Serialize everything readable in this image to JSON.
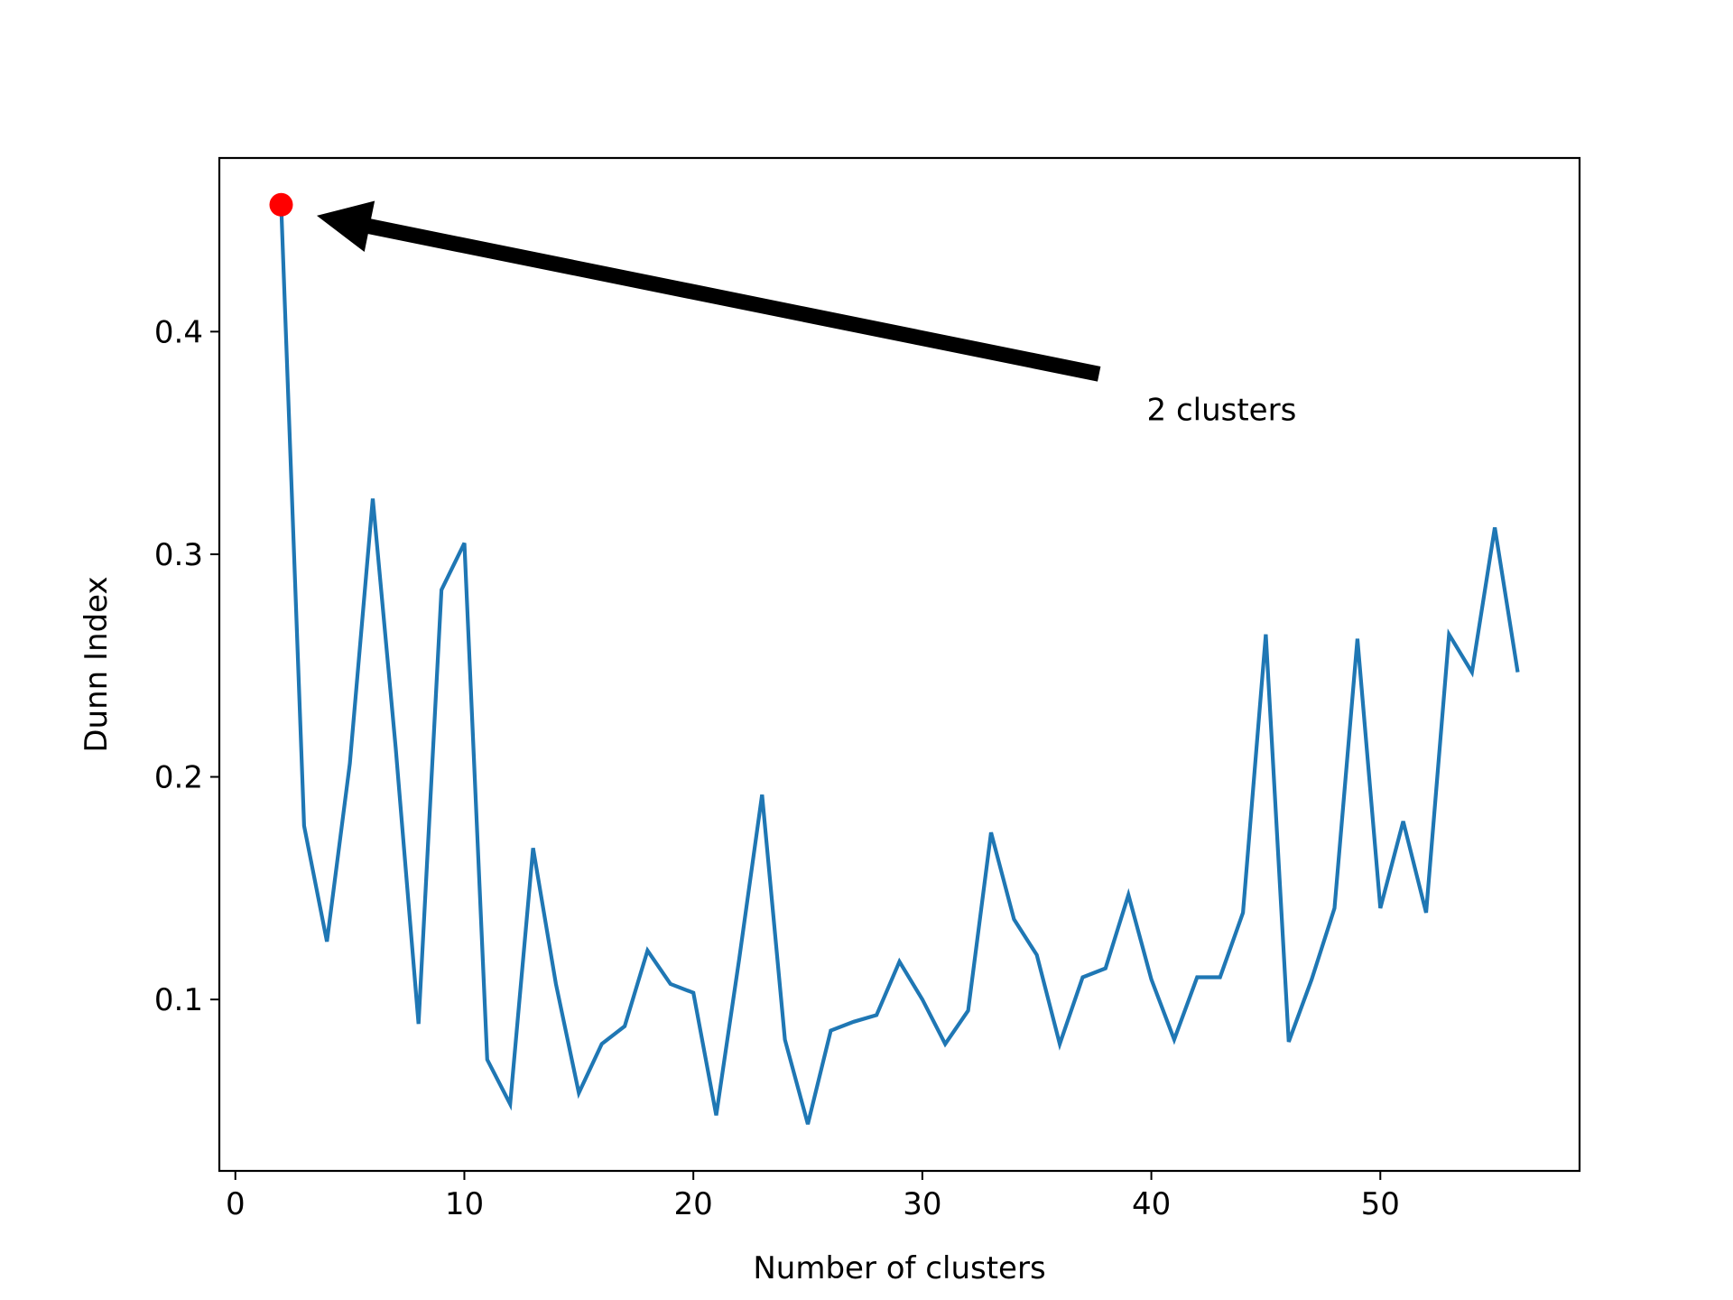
{
  "chart_data": {
    "type": "line",
    "title": "",
    "xlabel": "Number of clusters",
    "ylabel": "Dunn Index",
    "xlim": [
      -0.7,
      58.7
    ],
    "ylim": [
      0.023,
      0.478
    ],
    "xticks": [
      0,
      10,
      20,
      30,
      40,
      50
    ],
    "yticks": [
      0.1,
      0.2,
      0.3,
      0.4
    ],
    "xtick_labels": [
      "0",
      "10",
      "20",
      "30",
      "40",
      "50"
    ],
    "ytick_labels": [
      "0.1",
      "0.2",
      "0.3",
      "0.4"
    ],
    "grid": false,
    "series": [
      {
        "color": "#1f77b4",
        "x": [
          2,
          3,
          4,
          5,
          6,
          7,
          8,
          9,
          10,
          11,
          12,
          13,
          14,
          15,
          16,
          17,
          18,
          19,
          20,
          21,
          22,
          23,
          24,
          25,
          26,
          27,
          28,
          29,
          30,
          31,
          32,
          33,
          34,
          35,
          36,
          37,
          38,
          39,
          40,
          41,
          42,
          43,
          44,
          45,
          46,
          47,
          48,
          49,
          50,
          51,
          52,
          53,
          54,
          55,
          56
        ],
        "y": [
          0.457,
          0.178,
          0.126,
          0.206,
          0.325,
          0.213,
          0.089,
          0.284,
          0.305,
          0.073,
          0.053,
          0.168,
          0.107,
          0.058,
          0.08,
          0.088,
          0.122,
          0.107,
          0.103,
          0.048,
          0.118,
          0.192,
          0.082,
          0.044,
          0.086,
          0.09,
          0.093,
          0.117,
          0.1,
          0.08,
          0.095,
          0.175,
          0.136,
          0.12,
          0.08,
          0.11,
          0.114,
          0.147,
          0.109,
          0.082,
          0.11,
          0.11,
          0.139,
          0.264,
          0.081,
          0.109,
          0.141,
          0.262,
          0.141,
          0.18,
          0.139,
          0.264,
          0.247,
          0.312,
          0.247
        ]
      }
    ],
    "highlight_point": {
      "x": 2,
      "y": 0.457,
      "color": "#ff0000"
    },
    "annotation": {
      "text": "2 clusters",
      "text_x": 39.8,
      "text_y": 0.365,
      "arrow_tail_x": 37.7,
      "arrow_tail_y": 0.381,
      "arrow_head_x": 3.6,
      "arrow_head_y": 0.452
    }
  }
}
